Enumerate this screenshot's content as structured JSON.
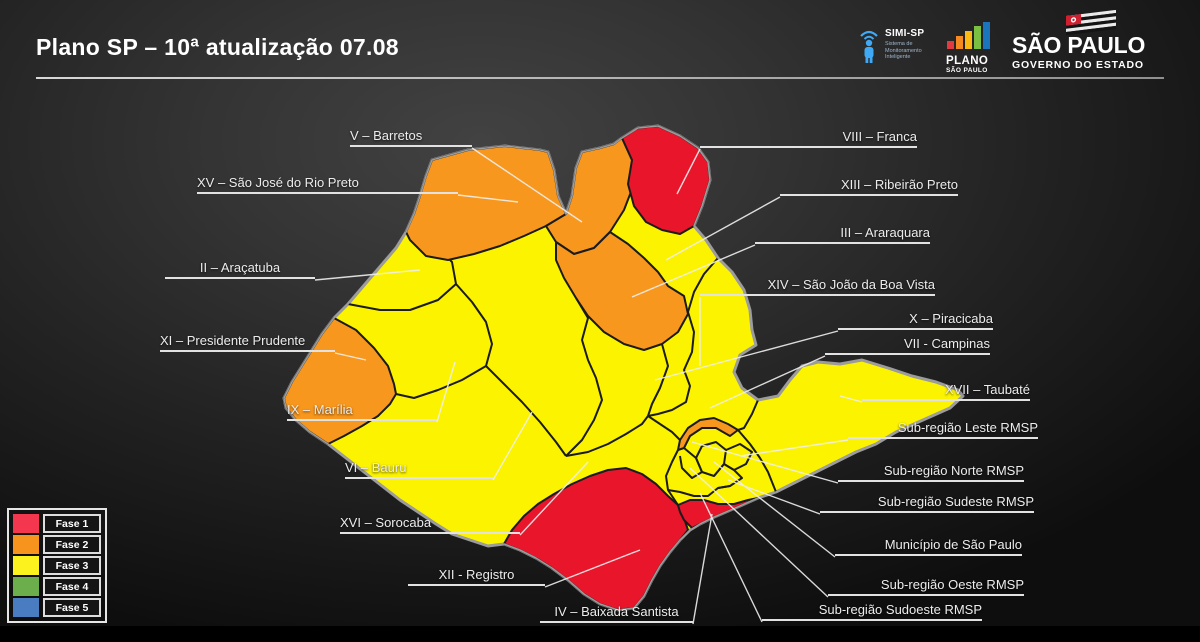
{
  "header": {
    "title": "Plano SP – 10ª atualização 07.08"
  },
  "logos": {
    "simi": {
      "title": "SIMI-SP",
      "sub1": "Sistema de",
      "sub2": "Monitoramento",
      "sub3": "Inteligente"
    },
    "plano": {
      "top": "PLANO",
      "bottom": "SÃO PAULO"
    },
    "governo": {
      "top": "SÃO PAULO",
      "bottom": "GOVERNO DO ESTADO"
    }
  },
  "legend": {
    "items": [
      {
        "label": "Fase 1",
        "color": "#F4374F"
      },
      {
        "label": "Fase 2",
        "color": "#F7941D"
      },
      {
        "label": "Fase 3",
        "color": "#FCF31E"
      },
      {
        "label": "Fase 4",
        "color": "#6CAE4B"
      },
      {
        "label": "Fase 5",
        "color": "#4A7CC2"
      }
    ]
  },
  "phase_colors": {
    "1": "#E8152B",
    "2": "#F8971D",
    "3": "#FBF300",
    "4": "#6CAE4B",
    "5": "#4A7CC2"
  },
  "map": {
    "regions": [
      {
        "id": "XV",
        "label": "XV – São José do Rio Preto",
        "phase": "2"
      },
      {
        "id": "V",
        "label": "V – Barretos",
        "phase": "2"
      },
      {
        "id": "VIII",
        "label": "VIII – Franca",
        "phase": "1"
      },
      {
        "id": "XIII",
        "label": "XIII – Ribeirão Preto",
        "phase": "3"
      },
      {
        "id": "III",
        "label": "III – Araraquara",
        "phase": "2"
      },
      {
        "id": "II",
        "label": "II – Araçatuba",
        "phase": "3"
      },
      {
        "id": "XIV",
        "label": "XIV – São João da Boa Vista",
        "phase": "3"
      },
      {
        "id": "X",
        "label": "X – Piracicaba",
        "phase": "3"
      },
      {
        "id": "VII",
        "label": "VII - Campinas",
        "phase": "3"
      },
      {
        "id": "XI",
        "label": "XI – Presidente Prudente",
        "phase": "2"
      },
      {
        "id": "XVII",
        "label": "XVII – Taubaté",
        "phase": "3"
      },
      {
        "id": "leste",
        "label": "Sub-região Leste RMSP",
        "phase": "3"
      },
      {
        "id": "IX",
        "label": "IX – Marília",
        "phase": "3"
      },
      {
        "id": "norte",
        "label": "Sub-região Norte RMSP",
        "phase": "2"
      },
      {
        "id": "VI",
        "label": "VI – Bauru",
        "phase": "3"
      },
      {
        "id": "sudeste",
        "label": "Sub-região Sudeste RMSP",
        "phase": "3"
      },
      {
        "id": "XVI",
        "label": "XVI – Sorocaba",
        "phase": "3"
      },
      {
        "id": "msp",
        "label": "Município de São Paulo",
        "phase": "3"
      },
      {
        "id": "XII",
        "label": "XII - Registro",
        "phase": "1"
      },
      {
        "id": "oeste",
        "label": "Sub-região Oeste RMSP",
        "phase": "3"
      },
      {
        "id": "IV",
        "label": "IV – Baixada Santista",
        "phase": "1"
      },
      {
        "id": "sudoeste",
        "label": "Sub-região Sudoeste RMSP",
        "phase": "3"
      }
    ]
  }
}
